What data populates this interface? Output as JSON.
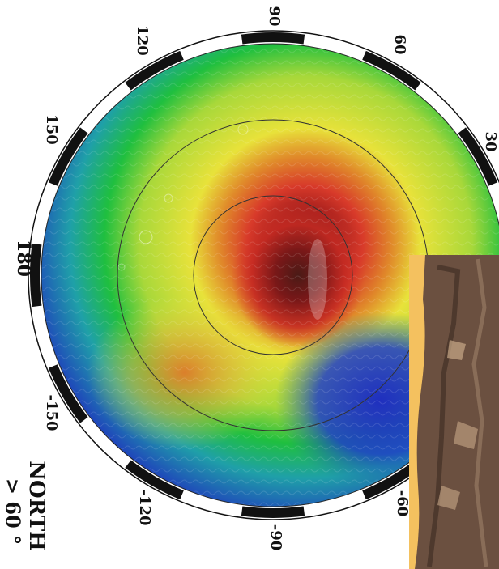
{
  "map": {
    "hemisphere_label": "NORTH",
    "latitude_label": "> 60 °",
    "longitude_labels": [
      "90",
      "60",
      "30",
      "120",
      "150",
      "180",
      "-150",
      "-120",
      "-90",
      "-60"
    ],
    "colors": {
      "low": "#1f2fbf",
      "mid_low": "#1fbf3f",
      "mid": "#e8e23a",
      "mid_high": "#e0892a",
      "high": "#b01818",
      "peak": "#4a1a16",
      "inset_background": "#f4c15f",
      "inset_terrain": "#6b5040"
    }
  }
}
